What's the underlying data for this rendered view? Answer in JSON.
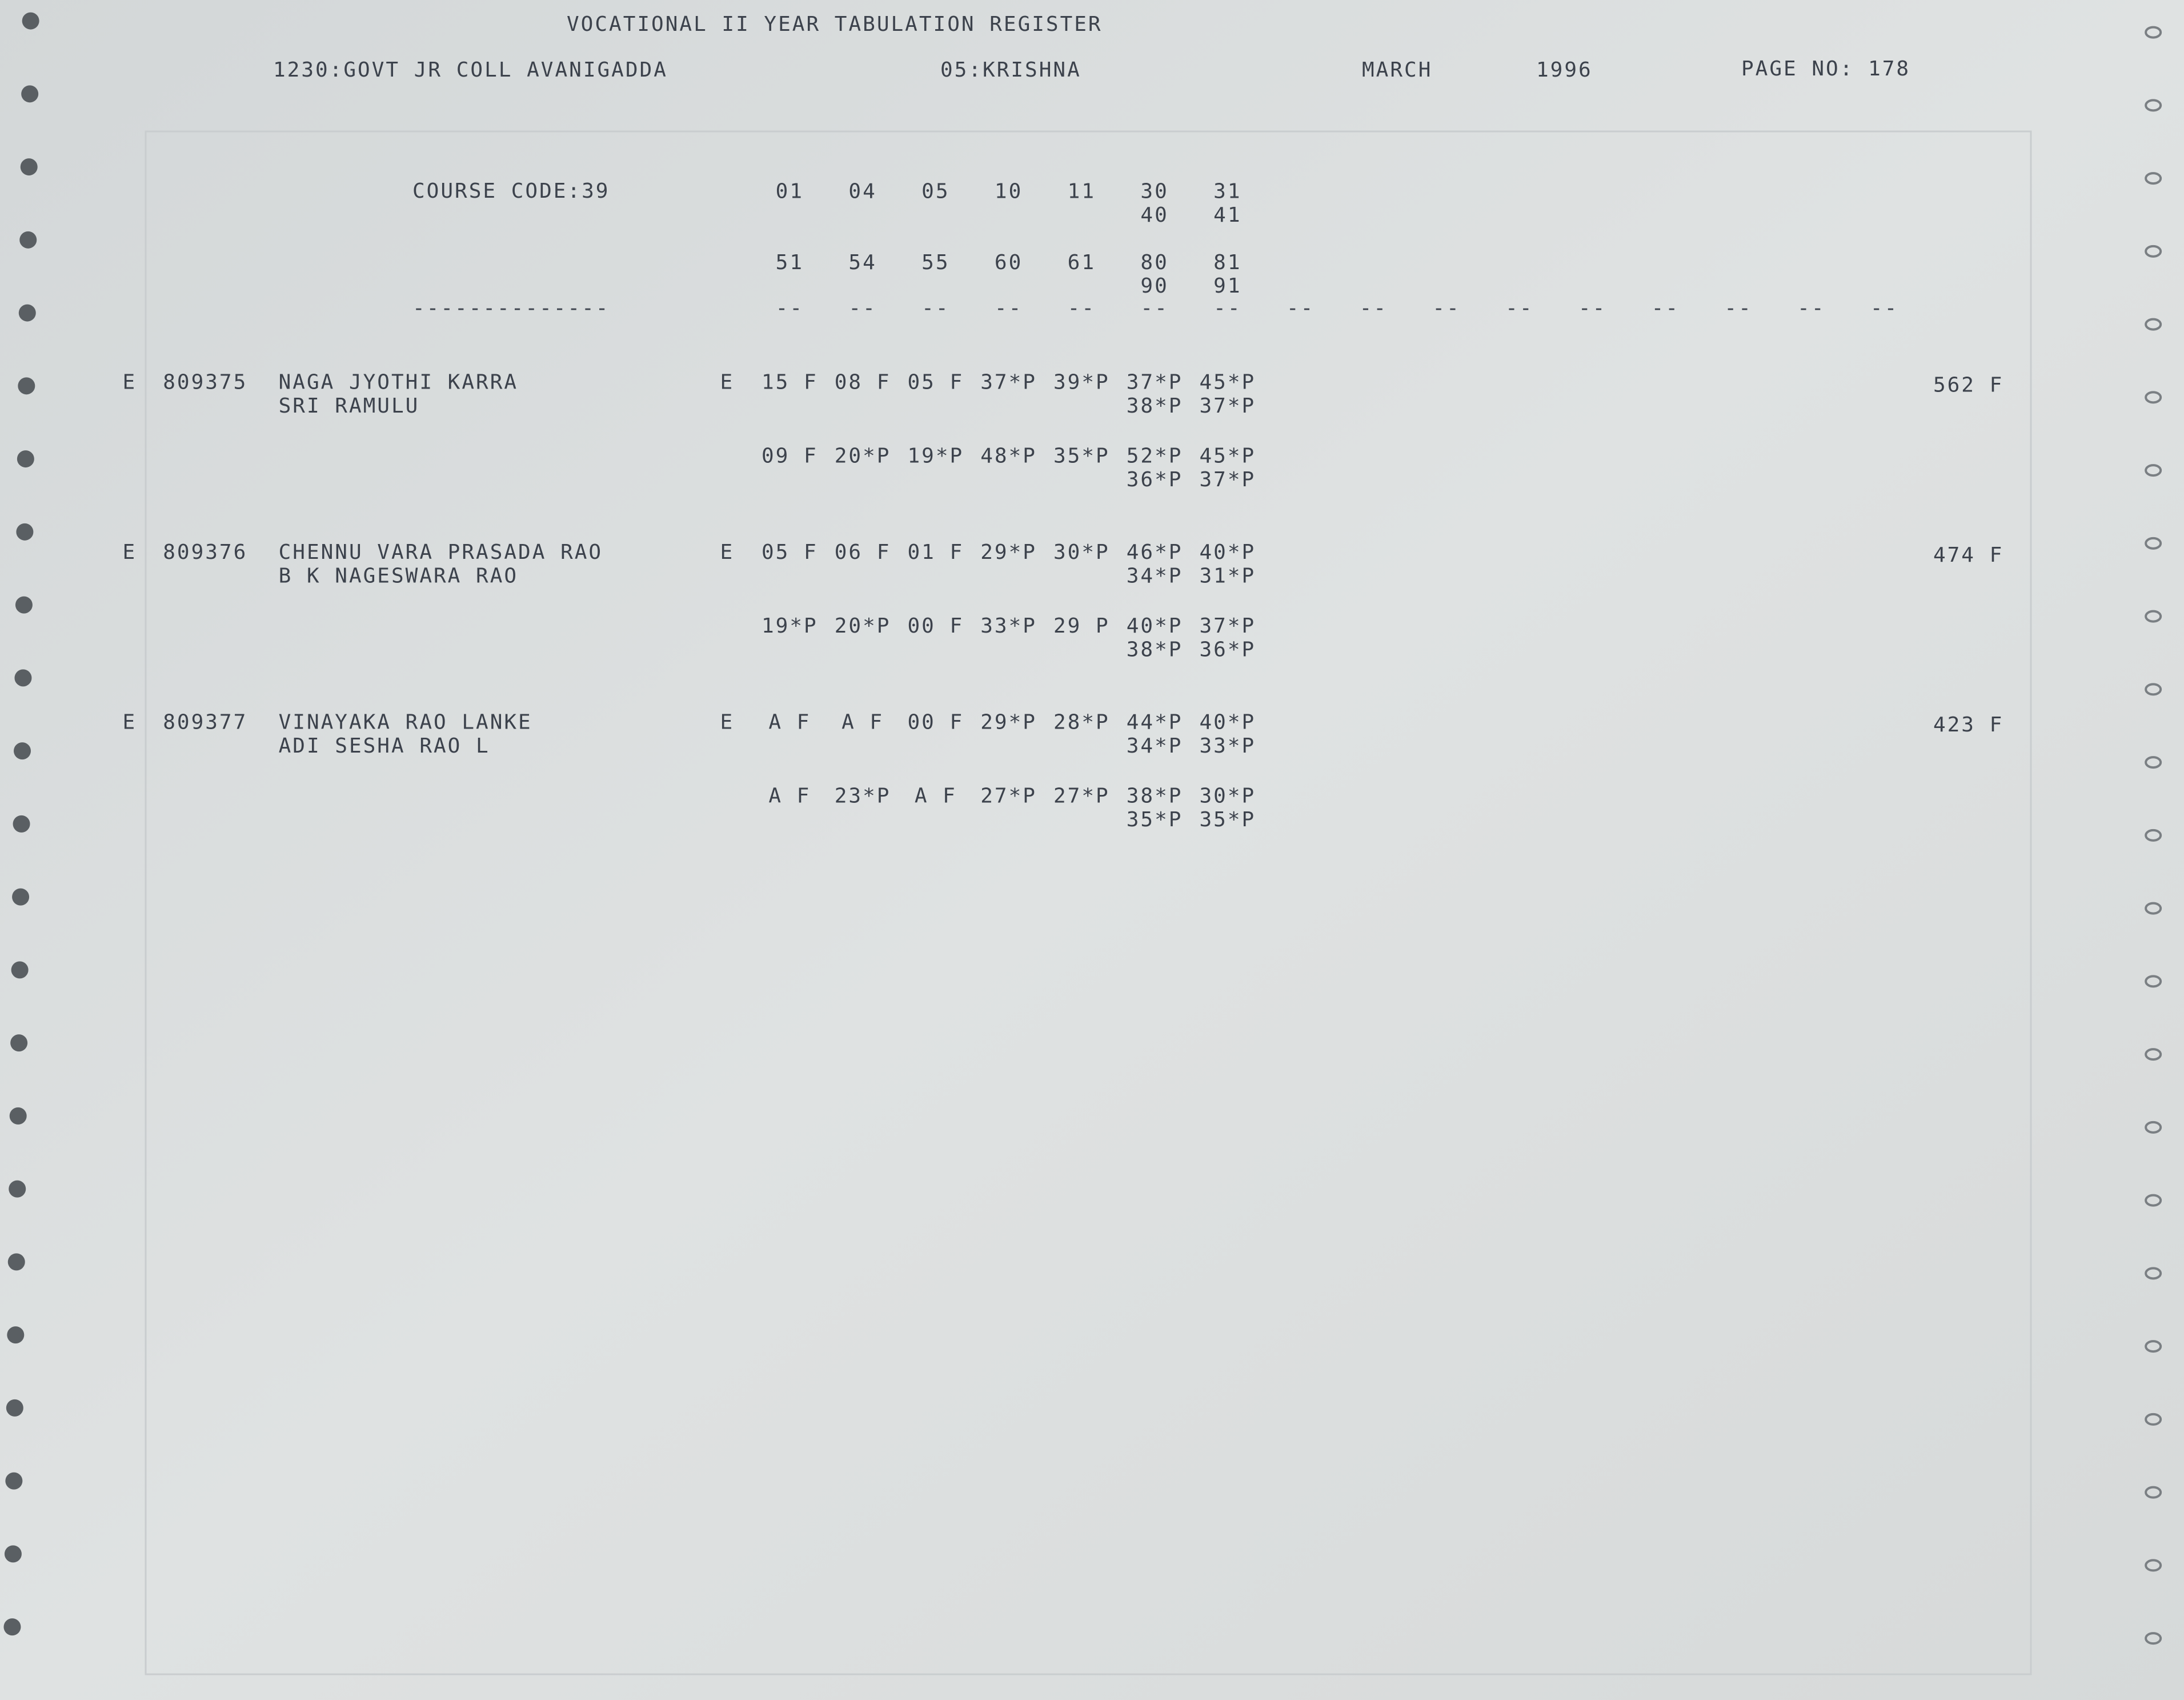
{
  "header": {
    "title": "VOCATIONAL II YEAR TABULATION REGISTER",
    "college": "1230:GOVT JR COLL AVANIGADDA",
    "district": "05:KRISHNA",
    "month": "MARCH",
    "year": "1996",
    "page": "PAGE NO: 178"
  },
  "course": {
    "label": "COURSE CODE:39",
    "codes": [
      [
        "01",
        "04",
        "05",
        "10",
        "11",
        "30",
        "31"
      ],
      [
        "40",
        "41"
      ],
      [
        "51",
        "54",
        "55",
        "60",
        "61",
        "80",
        "81"
      ],
      [
        "90",
        "91"
      ]
    ],
    "rule": "--------------",
    "column_rules": [
      "--",
      "--",
      "--",
      "--",
      "--",
      "--",
      "--",
      "--",
      "--",
      "--",
      "--",
      "--",
      "--",
      "--",
      "--",
      "--"
    ]
  },
  "students": [
    {
      "stream": "E",
      "number": "809375",
      "name": "NAGA JYOTHI KARRA",
      "parent": "SRI RAMULU",
      "result_prefix": "E",
      "marks": [
        [
          "15 F",
          "08 F",
          "05 F",
          "37*P",
          "39*P",
          "37*P",
          "45*P"
        ],
        [
          "38*P",
          "37*P"
        ],
        [
          "09 F",
          "20*P",
          "19*P",
          "48*P",
          "35*P",
          "52*P",
          "45*P"
        ],
        [
          "36*P",
          "37*P"
        ]
      ],
      "total": "562 F"
    },
    {
      "stream": "E",
      "number": "809376",
      "name": "CHENNU VARA PRASADA RAO",
      "parent": "B K NAGESWARA RAO",
      "result_prefix": "E",
      "marks": [
        [
          "05 F",
          "06 F",
          "01 F",
          "29*P",
          "30*P",
          "46*P",
          "40*P"
        ],
        [
          "34*P",
          "31*P"
        ],
        [
          "19*P",
          "20*P",
          "00 F",
          "33*P",
          "29 P",
          "40*P",
          "37*P"
        ],
        [
          "38*P",
          "36*P"
        ]
      ],
      "total": "474 F"
    },
    {
      "stream": "E",
      "number": "809377",
      "name": "VINAYAKA RAO LANKE",
      "parent": "ADI SESHA RAO L",
      "result_prefix": "E",
      "marks": [
        [
          "A F",
          "A F",
          "00 F",
          "29*P",
          "28*P",
          "44*P",
          "40*P"
        ],
        [
          "34*P",
          "33*P"
        ],
        [
          "A F",
          "23*P",
          "A F",
          "27*P",
          "27*P",
          "38*P",
          "30*P"
        ],
        [
          "35*P",
          "35*P"
        ]
      ],
      "total": "423 F"
    }
  ]
}
